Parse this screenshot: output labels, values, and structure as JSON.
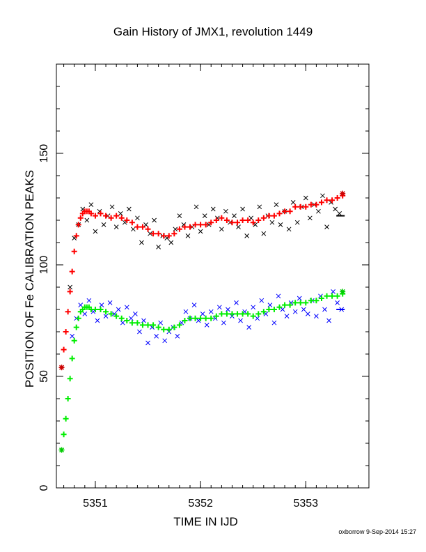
{
  "header": {
    "title": "Gain History of JMX1, revolution 1449",
    "credit": "oxborrow  9-Sep-2014 15:27"
  },
  "chart_data": {
    "type": "scatter",
    "title": "Gain History of JMX1, revolution 1449",
    "xlabel": "TIME IN IJD",
    "ylabel": "POSITION OF Fe CALIBRATION PEAKS",
    "xlim": [
      5350.63,
      5353.6
    ],
    "ylim": [
      0,
      190
    ],
    "x_ticks": [
      5351,
      5352,
      5353
    ],
    "x_tick_labels": [
      "5351",
      "5352",
      "5353"
    ],
    "y_ticks": [
      0,
      50,
      100,
      150
    ],
    "y_tick_labels": [
      "0",
      "50",
      "100",
      "150"
    ],
    "grid": false,
    "colors": {
      "upper_fit": "#ff0000",
      "upper_raw": "#000000",
      "lower_fit": "#00ee00",
      "lower_raw": "#0000ff"
    },
    "series": [
      {
        "marker": "cross",
        "color": "#000000",
        "x": [
          5350.76,
          5350.8,
          5350.84,
          5350.88,
          5350.92,
          5350.96,
          5351.0,
          5351.04,
          5351.08,
          5351.12,
          5351.16,
          5351.2,
          5351.24,
          5351.28,
          5351.32,
          5351.36,
          5351.4,
          5351.44,
          5351.48,
          5351.52,
          5351.56,
          5351.6,
          5351.64,
          5351.68,
          5351.72,
          5351.76,
          5351.8,
          5351.84,
          5351.88,
          5351.92,
          5351.96,
          5352.0,
          5352.04,
          5352.08,
          5352.12,
          5352.16,
          5352.2,
          5352.24,
          5352.28,
          5352.32,
          5352.36,
          5352.4,
          5352.44,
          5352.48,
          5352.52,
          5352.56,
          5352.6,
          5352.64,
          5352.68,
          5352.72,
          5352.76,
          5352.8,
          5352.84,
          5352.88,
          5352.92,
          5352.96,
          5353.0,
          5353.04,
          5353.08,
          5353.12,
          5353.16,
          5353.2,
          5353.24,
          5353.28,
          5353.32
        ],
        "y": [
          90,
          112,
          118,
          125,
          120,
          127,
          115,
          124,
          118,
          122,
          126,
          117,
          123,
          119,
          125,
          116,
          121,
          110,
          118,
          114,
          120,
          108,
          113,
          112,
          110,
          116,
          122,
          118,
          113,
          117,
          126,
          115,
          122,
          118,
          125,
          121,
          116,
          124,
          119,
          122,
          117,
          125,
          113,
          121,
          118,
          126,
          114,
          122,
          119,
          127,
          118,
          124,
          116,
          128,
          119,
          126,
          130,
          121,
          127,
          124,
          131,
          117,
          128,
          125,
          123
        ]
      },
      {
        "marker": "cross",
        "color": "#0000ff",
        "x": [
          5350.78,
          5350.82,
          5350.86,
          5350.9,
          5350.94,
          5350.98,
          5351.02,
          5351.06,
          5351.1,
          5351.14,
          5351.18,
          5351.22,
          5351.26,
          5351.3,
          5351.34,
          5351.38,
          5351.42,
          5351.46,
          5351.5,
          5351.54,
          5351.58,
          5351.62,
          5351.66,
          5351.7,
          5351.74,
          5351.78,
          5351.82,
          5351.86,
          5351.9,
          5351.94,
          5351.98,
          5352.02,
          5352.06,
          5352.1,
          5352.14,
          5352.18,
          5352.22,
          5352.26,
          5352.3,
          5352.34,
          5352.38,
          5352.42,
          5352.46,
          5352.5,
          5352.54,
          5352.58,
          5352.62,
          5352.66,
          5352.7,
          5352.74,
          5352.78,
          5352.82,
          5352.86,
          5352.9,
          5352.94,
          5352.98,
          5353.02,
          5353.06,
          5353.1,
          5353.14,
          5353.18,
          5353.22,
          5353.26,
          5353.3,
          5353.34
        ],
        "y": [
          68,
          76,
          82,
          78,
          84,
          79,
          75,
          82,
          77,
          83,
          78,
          80,
          74,
          81,
          76,
          78,
          70,
          75,
          65,
          72,
          68,
          74,
          66,
          70,
          72,
          68,
          74,
          79,
          76,
          82,
          75,
          78,
          73,
          79,
          76,
          81,
          74,
          80,
          77,
          83,
          75,
          79,
          72,
          81,
          76,
          84,
          78,
          82,
          74,
          86,
          80,
          77,
          83,
          79,
          85,
          80,
          78,
          84,
          77,
          86,
          80,
          75,
          88,
          83,
          80
        ]
      },
      {
        "name": "",
        "marker": "plus",
        "color": "#ff0000",
        "x": [
          5350.7,
          5350.72,
          5350.74,
          5350.76,
          5350.78,
          5350.8,
          5350.82,
          5350.84,
          5350.86,
          5350.88,
          5350.9,
          5350.92,
          5350.94,
          5350.96,
          5351.0,
          5351.05,
          5351.1,
          5351.15,
          5351.2,
          5351.25,
          5351.3,
          5351.35,
          5351.4,
          5351.45,
          5351.5,
          5351.55,
          5351.6,
          5351.65,
          5351.7,
          5351.75,
          5351.8,
          5351.85,
          5351.9,
          5351.95,
          5352.0,
          5352.05,
          5352.1,
          5352.15,
          5352.2,
          5352.25,
          5352.3,
          5352.35,
          5352.4,
          5352.45,
          5352.5,
          5352.55,
          5352.6,
          5352.65,
          5352.7,
          5352.75,
          5352.8,
          5352.85,
          5352.9,
          5352.95,
          5353.0,
          5353.05,
          5353.1,
          5353.15,
          5353.2,
          5353.25,
          5353.3,
          5353.35
        ],
        "y": [
          62,
          70,
          79,
          88,
          97,
          106,
          113,
          118,
          121,
          123,
          124,
          124,
          124,
          123,
          122,
          123,
          122,
          121,
          122,
          121,
          120,
          119,
          117,
          117,
          116,
          114,
          114,
          113,
          113,
          114,
          116,
          117,
          117,
          118,
          118,
          118,
          119,
          120,
          121,
          120,
          119,
          119,
          120,
          120,
          119,
          120,
          121,
          122,
          122,
          123,
          124,
          124,
          126,
          126,
          126,
          127,
          127,
          128,
          129,
          129,
          130,
          131
        ]
      },
      {
        "name": "",
        "marker": "plus",
        "color": "#00ee00",
        "x": [
          5350.7,
          5350.72,
          5350.74,
          5350.76,
          5350.78,
          5350.8,
          5350.82,
          5350.84,
          5350.86,
          5350.88,
          5350.9,
          5350.92,
          5350.94,
          5350.96,
          5351.0,
          5351.05,
          5351.1,
          5351.15,
          5351.2,
          5351.25,
          5351.3,
          5351.35,
          5351.4,
          5351.45,
          5351.5,
          5351.55,
          5351.6,
          5351.65,
          5351.7,
          5351.75,
          5351.8,
          5351.85,
          5351.9,
          5351.95,
          5352.0,
          5352.05,
          5352.1,
          5352.15,
          5352.2,
          5352.25,
          5352.3,
          5352.35,
          5352.4,
          5352.45,
          5352.5,
          5352.55,
          5352.6,
          5352.65,
          5352.7,
          5352.75,
          5352.8,
          5352.85,
          5352.9,
          5352.95,
          5353.0,
          5353.05,
          5353.1,
          5353.15,
          5353.2,
          5353.25,
          5353.3,
          5353.35
        ],
        "y": [
          24,
          31,
          40,
          49,
          58,
          66,
          72,
          76,
          79,
          80,
          81,
          81,
          81,
          80,
          80,
          80,
          79,
          78,
          77,
          76,
          75,
          74,
          74,
          73,
          73,
          73,
          72,
          71,
          71,
          72,
          73,
          75,
          76,
          76,
          76,
          76,
          76,
          77,
          78,
          78,
          78,
          78,
          78,
          78,
          77,
          78,
          79,
          80,
          80,
          81,
          82,
          82,
          83,
          83,
          83,
          84,
          84,
          85,
          86,
          86,
          86,
          87
        ]
      },
      {
        "marker": "star",
        "color": "#cc0000",
        "x": [
          5350.68,
          5353.35
        ],
        "y": [
          54,
          132
        ]
      },
      {
        "marker": "star",
        "color": "#00cc00",
        "x": [
          5350.68,
          5353.35
        ],
        "y": [
          17,
          88
        ]
      },
      {
        "marker": "dash",
        "color": "#000000",
        "x": [
          5353.33
        ],
        "y": [
          122
        ]
      },
      {
        "marker": "dash",
        "color": "#0000ff",
        "x": [
          5353.33
        ],
        "y": [
          80
        ]
      }
    ]
  }
}
